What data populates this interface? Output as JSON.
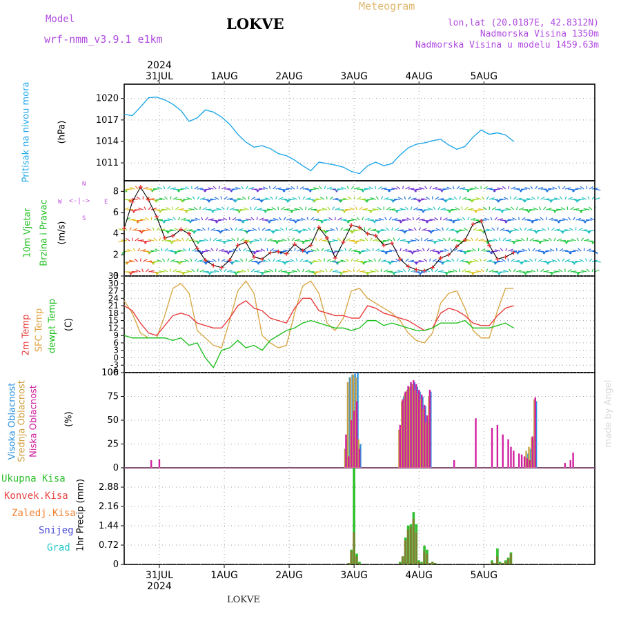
{
  "header": {
    "model_label": "Model",
    "model_name": "wrf-nmm_v3.9.1  e1km",
    "station": "LOKVE",
    "meteogram": "Meteogram",
    "lonlat": "lon,lat (20.0187E, 42.8312N)",
    "elevation": "Nadmorska Visina 1350m",
    "model_elevation": "Nadmorska Visina u modelu 1459.63m"
  },
  "footer": {
    "station": "LOKVE",
    "watermark": "made by Angel"
  },
  "colors": {
    "pressure": "#22a8e8",
    "temp2m": "#e83c3c",
    "sfc": "#d8a848",
    "dewpt": "#20c020",
    "cloud_high": "#2a90e0",
    "cloud_mid": "#c8a040",
    "cloud_low": "#d020a0",
    "precip_total": "#30c030",
    "precip_conv": "#e84040",
    "precip_frozen": "#f08030",
    "snow": "#4848d8",
    "hail": "#28c8c8",
    "purple_text": "#b04ce0",
    "gold_text": "#e0b870"
  },
  "time_axis": {
    "year": "2024",
    "days": [
      "31JUL",
      "1AUG",
      "2AUG",
      "3AUG",
      "4AUG",
      "5AUG"
    ]
  },
  "chart_data": [
    {
      "type": "line",
      "title": "Pritisak na nivou mora",
      "ylabel": "(hPa)",
      "ylim": [
        1008.5,
        1022
      ],
      "yticks": [
        1011,
        1014,
        1017,
        1020
      ],
      "ytick_labels": [
        "1011",
        "1014",
        "1017",
        "1020"
      ],
      "x_hours_from_start": [
        0,
        3,
        6,
        9,
        12,
        15,
        18,
        21,
        24,
        27,
        30,
        33,
        36,
        39,
        42,
        45,
        48,
        51,
        54,
        57,
        60,
        63,
        66,
        69,
        72,
        75,
        78,
        81,
        84,
        87,
        90,
        93,
        96,
        99,
        102,
        105,
        108,
        111,
        114,
        117,
        120,
        123,
        126,
        129,
        132,
        135,
        138,
        141,
        144
      ],
      "series": [
        {
          "name": "Pritisak na nivou mora",
          "values": [
            1017.8,
            1017.6,
            1018.8,
            1020.1,
            1020.2,
            1019.8,
            1019.2,
            1018.3,
            1016.8,
            1017.3,
            1018.4,
            1018.1,
            1017.4,
            1016.4,
            1015.0,
            1013.9,
            1013.2,
            1013.4,
            1013.0,
            1012.3,
            1012.0,
            1011.4,
            1010.6,
            1009.9,
            1011.1,
            1010.9,
            1010.7,
            1010.4,
            1009.8,
            1009.5,
            1010.6,
            1011.1,
            1010.6,
            1010.9,
            1012.1,
            1013.1,
            1013.6,
            1013.8,
            1014.1,
            1014.3,
            1013.5,
            1012.9,
            1013.3,
            1014.6,
            1015.6,
            1015.0,
            1015.2,
            1014.9,
            1014.0
          ]
        }
      ]
    },
    {
      "type": "line",
      "title": "10m Vjetar Brzina i Pravac",
      "ylabel": "(m/s)",
      "ylim": [
        0,
        9
      ],
      "yticks": [
        0,
        2,
        4,
        6,
        8
      ],
      "ytick_labels": [
        "0",
        "2",
        "4",
        "6",
        "8"
      ],
      "legend": "N, S, W, E",
      "x_hours_from_start": [
        0,
        3,
        6,
        9,
        12,
        15,
        18,
        21,
        24,
        27,
        30,
        33,
        36,
        39,
        42,
        45,
        48,
        51,
        54,
        57,
        60,
        63,
        66,
        69,
        72,
        75,
        78,
        81,
        84,
        87,
        90,
        93,
        96,
        99,
        102,
        105,
        108,
        111,
        114,
        117,
        120,
        123,
        126,
        129,
        132,
        135,
        138,
        141,
        144
      ],
      "series": [
        {
          "name": "10m Vjetar",
          "values": [
            4.5,
            7.0,
            8.4,
            7.2,
            5.6,
            3.6,
            3.8,
            4.4,
            4.0,
            2.6,
            1.5,
            1.0,
            0.8,
            1.5,
            2.9,
            3.2,
            1.8,
            1.6,
            2.2,
            2.3,
            2.1,
            3.0,
            2.4,
            2.9,
            4.6,
            3.6,
            1.7,
            3.2,
            4.8,
            4.6,
            4.0,
            3.8,
            2.9,
            3.1,
            1.6,
            0.9,
            0.6,
            0.5,
            0.8,
            1.7,
            2.0,
            2.8,
            3.4,
            4.9,
            5.2,
            2.9,
            1.6,
            1.8,
            2.2
          ]
        }
      ]
    },
    {
      "type": "line",
      "title": "2m Temp / SFC Temp / dewpt Temp",
      "ylabel": "(C)",
      "ylim": [
        -6,
        33
      ],
      "yticks": [
        -6,
        -3,
        0,
        3,
        6,
        9,
        12,
        15,
        18,
        21,
        24,
        27,
        30,
        33
      ],
      "ytick_labels": [
        "-6",
        "-3",
        "0",
        "3",
        "6",
        "9",
        "12",
        "15",
        "18",
        "21",
        "24",
        "27",
        "30",
        "33"
      ],
      "x_hours_from_start": [
        0,
        3,
        6,
        9,
        12,
        15,
        18,
        21,
        24,
        27,
        30,
        33,
        36,
        39,
        42,
        45,
        48,
        51,
        54,
        57,
        60,
        63,
        66,
        69,
        72,
        75,
        78,
        81,
        84,
        87,
        90,
        93,
        96,
        99,
        102,
        105,
        108,
        111,
        114,
        117,
        120,
        123,
        126,
        129,
        132,
        135,
        138,
        141,
        144
      ],
      "series": [
        {
          "name": "2m Temp",
          "values": [
            21,
            19,
            14,
            10,
            9,
            13,
            17,
            18,
            17,
            14,
            13,
            12,
            12,
            16,
            21,
            23,
            20,
            19,
            16,
            15,
            14,
            20,
            24,
            24,
            19,
            18,
            17,
            17,
            16,
            16,
            21,
            20,
            18,
            17,
            16,
            15,
            13,
            11,
            12,
            18,
            20,
            19,
            17,
            14,
            13,
            13,
            17,
            20,
            21
          ]
        },
        {
          "name": "SFC Temp",
          "values": [
            23,
            18,
            10,
            8,
            8,
            17,
            28,
            30,
            26,
            11,
            8,
            5,
            4,
            15,
            27,
            31,
            26,
            9,
            6,
            4,
            5,
            18,
            29,
            31,
            26,
            14,
            11,
            16,
            27,
            28,
            24,
            22,
            20,
            18,
            15,
            10,
            7,
            6,
            10,
            22,
            26,
            27,
            20,
            11,
            8,
            8,
            19,
            28,
            28
          ]
        },
        {
          "name": "dewpt Temp",
          "values": [
            9,
            8,
            8,
            8,
            8,
            8,
            7,
            8,
            5,
            6,
            0,
            -4,
            3,
            4,
            7,
            4,
            5,
            3,
            7,
            9,
            11,
            12,
            14,
            15,
            14,
            13,
            12,
            12,
            11,
            12,
            15,
            15,
            13,
            14,
            13,
            12,
            11,
            11,
            12,
            14,
            14,
            14,
            15,
            12,
            12,
            12,
            13,
            14,
            12
          ]
        }
      ]
    },
    {
      "type": "bar",
      "title": "Visoka Oblacnost / Srednja Oblacnost / Niska Oblacnost",
      "ylabel": "(%)",
      "ylim": [
        0,
        100
      ],
      "yticks": [
        0,
        25,
        50,
        75,
        100
      ],
      "ytick_labels": [
        "0",
        "25",
        "50",
        "75",
        "100"
      ],
      "x_hours_from_start": [
        10,
        13,
        82,
        83,
        84,
        85,
        86,
        87,
        88,
        89,
        90,
        91,
        92,
        93,
        94,
        95,
        102,
        103,
        104,
        105,
        106,
        107,
        108,
        109,
        110,
        111,
        112,
        113,
        114,
        115,
        116,
        117,
        118,
        119,
        122,
        130,
        136,
        138,
        140,
        142,
        143,
        144,
        146,
        147,
        148,
        149,
        150,
        151,
        152,
        163,
        165,
        166
      ],
      "series": [
        {
          "name": "Visoka Oblacnost",
          "values": [
            0,
            0,
            30,
            95,
            98,
            99,
            100,
            25,
            0,
            0,
            0,
            0,
            0,
            0,
            0,
            0,
            0,
            75,
            80,
            85,
            88,
            90,
            85,
            80,
            75,
            65,
            50,
            80,
            0,
            0,
            0,
            0,
            0,
            0,
            0,
            0,
            0,
            0,
            0,
            0,
            0,
            0,
            0,
            0,
            0,
            15,
            20,
            30,
            70,
            0,
            0,
            0
          ]
        },
        {
          "name": "Srednja Oblacnost",
          "values": [
            0,
            0,
            20,
            90,
            95,
            98,
            95,
            30,
            0,
            0,
            0,
            0,
            0,
            0,
            0,
            0,
            40,
            70,
            78,
            82,
            85,
            88,
            82,
            78,
            72,
            62,
            48,
            75,
            0,
            0,
            0,
            0,
            0,
            0,
            0,
            0,
            0,
            0,
            0,
            0,
            0,
            0,
            0,
            0,
            0,
            18,
            22,
            32,
            72,
            0,
            0,
            0
          ]
        },
        {
          "name": "Niska Oblacnost",
          "values": [
            8,
            9,
            35,
            12,
            50,
            60,
            70,
            20,
            0,
            0,
            0,
            0,
            0,
            0,
            0,
            0,
            45,
            72,
            80,
            86,
            90,
            92,
            88,
            82,
            77,
            66,
            55,
            82,
            0,
            0,
            0,
            0,
            0,
            0,
            8,
            52,
            42,
            45,
            35,
            30,
            22,
            18,
            15,
            14,
            12,
            10,
            8,
            33,
            74,
            5,
            8,
            16
          ]
        }
      ]
    },
    {
      "type": "bar",
      "title": "Ukupna Kisa / Konvek.Kisa / Zaledj.Kisa / Snijeg / Grad",
      "ylabel": "1hr Precip (mm)",
      "ylim": [
        0,
        3.6
      ],
      "yticks": [
        0,
        0.72,
        1.44,
        2.16,
        2.88
      ],
      "ytick_labels": [
        "0",
        "0.72",
        "1.44",
        "2.16",
        "2.88"
      ],
      "x_hours_from_start": [
        83,
        84,
        85,
        86,
        87,
        102,
        103,
        104,
        105,
        106,
        107,
        108,
        109,
        110,
        111,
        112,
        113,
        114,
        115,
        136,
        137,
        138,
        139,
        140,
        141,
        142,
        143
      ],
      "series": [
        {
          "name": "Ukupna Kisa",
          "values": [
            0.05,
            0.55,
            3.6,
            0.4,
            0.1,
            0.1,
            0.3,
            1.0,
            1.45,
            1.5,
            1.95,
            1.5,
            0.15,
            0.1,
            0.7,
            0.55,
            0.05,
            0.1,
            0.05,
            0.15,
            0.05,
            0.6,
            0.1,
            0.05,
            0.15,
            0.25,
            0.45
          ]
        },
        {
          "name": "Konvek.Kisa",
          "values": [
            0.05,
            0.5,
            1.2,
            0.3,
            0.05,
            0.05,
            0.3,
            0.9,
            1.3,
            1.4,
            1.7,
            1.2,
            0.1,
            0.05,
            0.5,
            0.4,
            0.05,
            0.1,
            0.05,
            0.1,
            0.05,
            0.3,
            0.05,
            0.05,
            0.1,
            0.2,
            0.4
          ]
        }
      ]
    }
  ],
  "panel_labels": {
    "pressure": [
      "Pritisak  na  nivou  mora"
    ],
    "pressure_unit": "(hPa)",
    "wind": [
      "10m  Vjetar",
      "Brzina  i  Pravac"
    ],
    "wind_unit": "(m/s)",
    "wind_legend": {
      "n": "N",
      "s": "S",
      "w": "W",
      "e": "E"
    },
    "temp": [
      "2m  Temp",
      "SFC  Temp",
      "dewpt  Temp"
    ],
    "temp_unit": "(C)",
    "cloud": [
      "Visoka  Oblacnost",
      "Srednja  Oblacnost",
      "Niska  Oblacnost"
    ],
    "cloud_unit": "(%)",
    "precip_legend": [
      "Ukupna  Kisa",
      "Konvek.Kisa",
      "Zaledj.Kisa",
      "Snijeg",
      "Grad"
    ],
    "precip_unit": "1hr  Precip  (mm)"
  }
}
